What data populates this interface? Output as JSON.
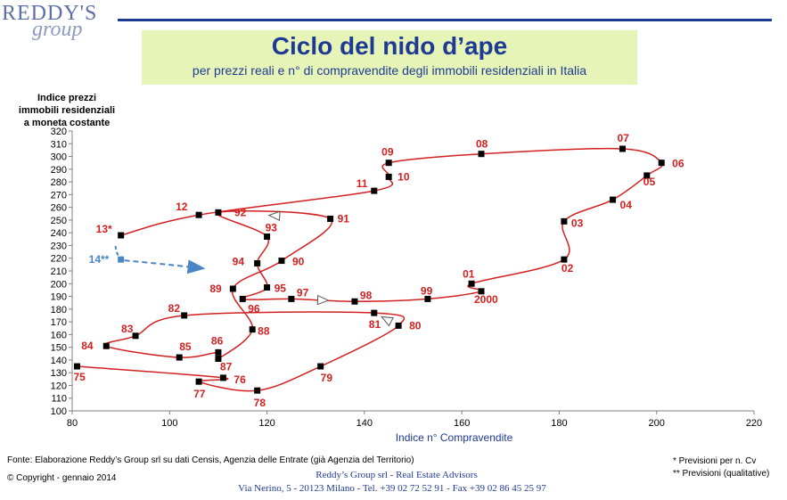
{
  "header": {
    "logo_main": "REDDY'S",
    "logo_sub": "group",
    "title": "Ciclo del nido d’ape",
    "subtitle": "per prezzi reali e n° di compravendite degli immobili residenziali in Italia"
  },
  "colors": {
    "series": "#d32020",
    "forecast": "#4a86c5",
    "accent": "#1f3a93",
    "banner": "#e6f4b8"
  },
  "chart_data": {
    "type": "scatter",
    "connected": true,
    "xlabel": "Indice n° Compravendite",
    "ylabel_lines": [
      "Indice prezzi",
      "immobili residenziali",
      "a moneta costante"
    ],
    "xlim": [
      80,
      220
    ],
    "ylim": [
      100,
      320
    ],
    "xticks": [
      80,
      100,
      120,
      140,
      160,
      180,
      200,
      220
    ],
    "yticks": [
      100,
      110,
      120,
      130,
      140,
      150,
      160,
      170,
      180,
      190,
      200,
      210,
      220,
      230,
      240,
      250,
      260,
      270,
      280,
      290,
      300,
      310,
      320
    ],
    "grid": false,
    "points": [
      {
        "label": "75",
        "x": 81,
        "y": 135
      },
      {
        "label": "76",
        "x": 111,
        "y": 126
      },
      {
        "label": "77",
        "x": 106,
        "y": 123
      },
      {
        "label": "78",
        "x": 118,
        "y": 116
      },
      {
        "label": "79",
        "x": 131,
        "y": 135
      },
      {
        "label": "80",
        "x": 147,
        "y": 167
      },
      {
        "label": "81",
        "x": 142,
        "y": 177
      },
      {
        "label": "82",
        "x": 103,
        "y": 175
      },
      {
        "label": "83",
        "x": 93,
        "y": 159
      },
      {
        "label": "84",
        "x": 87,
        "y": 151
      },
      {
        "label": "85",
        "x": 102,
        "y": 142
      },
      {
        "label": "86",
        "x": 110,
        "y": 146
      },
      {
        "label": "87",
        "x": 110,
        "y": 141
      },
      {
        "label": "88",
        "x": 117,
        "y": 164
      },
      {
        "label": "89",
        "x": 113,
        "y": 196
      },
      {
        "label": "90",
        "x": 123,
        "y": 218
      },
      {
        "label": "91",
        "x": 133,
        "y": 251
      },
      {
        "label": "92",
        "x": 110,
        "y": 256
      },
      {
        "label": "93",
        "x": 120,
        "y": 237
      },
      {
        "label": "94",
        "x": 118,
        "y": 216
      },
      {
        "label": "95",
        "x": 120,
        "y": 197
      },
      {
        "label": "96",
        "x": 115,
        "y": 188
      },
      {
        "label": "97",
        "x": 125,
        "y": 188
      },
      {
        "label": "98",
        "x": 138,
        "y": 186
      },
      {
        "label": "99",
        "x": 153,
        "y": 188
      },
      {
        "label": "2000",
        "x": 164,
        "y": 194
      },
      {
        "label": "01",
        "x": 162,
        "y": 200
      },
      {
        "label": "02",
        "x": 181,
        "y": 219
      },
      {
        "label": "03",
        "x": 181,
        "y": 249
      },
      {
        "label": "04",
        "x": 191,
        "y": 266
      },
      {
        "label": "05",
        "x": 198,
        "y": 285
      },
      {
        "label": "06",
        "x": 201,
        "y": 295
      },
      {
        "label": "07",
        "x": 193,
        "y": 306
      },
      {
        "label": "08",
        "x": 164,
        "y": 302
      },
      {
        "label": "09",
        "x": 145,
        "y": 295
      },
      {
        "label": "10",
        "x": 145,
        "y": 284
      },
      {
        "label": "11",
        "x": 142,
        "y": 273
      },
      {
        "label": "12",
        "x": 106,
        "y": 254
      },
      {
        "label": "13*",
        "x": 90,
        "y": 238
      }
    ],
    "forecast": {
      "label": "14**",
      "x": 90,
      "y": 219,
      "arrow_to": {
        "x": 107,
        "y": 212
      }
    }
  },
  "footer": {
    "source": "Fonte: Elaborazione Reddy’s Group srl su dati Censis, Agenzia delle Entrate (già Agenzia del Territorio)",
    "copyright": "© Copyright - gennaio 2014",
    "company": "Reddy’s Group srl - Real Estate Advisors",
    "address": "Via Nerino, 5 - 20123 Milano - Tel. +39 02 72 52 91 - Fax +39 02 86 45 25 97",
    "note1": "* Previsioni per n. Cv",
    "note2": "** Previsioni (qualitative)"
  }
}
